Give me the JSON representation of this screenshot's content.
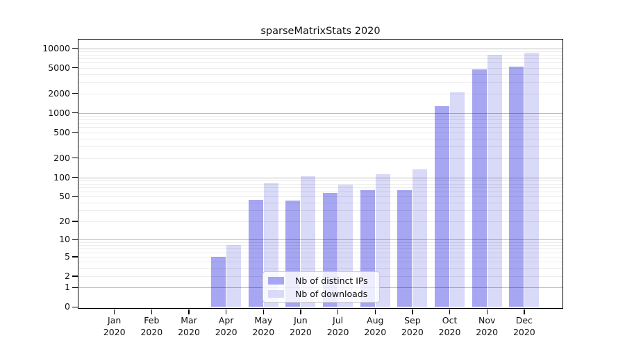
{
  "window": {
    "title": "sparseMatrixStats 2020"
  },
  "chart_data": {
    "type": "bar",
    "title": "sparseMatrixStats 2020",
    "xlabel": "",
    "ylabel": "",
    "categories": [
      "Jan",
      "Feb",
      "Mar",
      "Apr",
      "May",
      "Jun",
      "Jul",
      "Aug",
      "Sep",
      "Oct",
      "Nov",
      "Dec"
    ],
    "category_year_label": "2020",
    "series": [
      {
        "name": "Nb of distinct IPs",
        "color": "#a6a6f2",
        "values": [
          0,
          0,
          0,
          5,
          44,
          43,
          57,
          63,
          63,
          1270,
          4700,
          5200
        ]
      },
      {
        "name": "Nb of downloads",
        "color": "#d9d9f8",
        "values": [
          0,
          0,
          0,
          8,
          81,
          105,
          77,
          113,
          135,
          2100,
          7900,
          8500
        ]
      }
    ],
    "y_scale": "log1p",
    "y_ticks": [
      0,
      1,
      2,
      5,
      10,
      20,
      50,
      100,
      200,
      500,
      1000,
      2000,
      5000,
      10000
    ],
    "ylim": [
      0,
      13800
    ],
    "grid": true,
    "legend_position": "lower center inside",
    "colors": {
      "major_grid": "rgba(0,0,0,0.26)",
      "minor_grid": "rgba(0,0,0,0.075)",
      "frame": "#000000",
      "text": "#111111",
      "legend_border": "#cccccc"
    }
  }
}
